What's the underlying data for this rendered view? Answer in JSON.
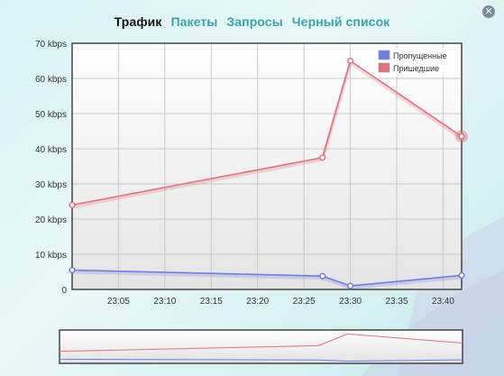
{
  "tabs": [
    {
      "label": "Трафик",
      "active": true
    },
    {
      "label": "Пакеты",
      "active": false
    },
    {
      "label": "Запросы",
      "active": false
    },
    {
      "label": "Черный список",
      "active": false
    }
  ],
  "close_icon": "close-icon",
  "colors": {
    "series_dropped": "#6e7ee6",
    "series_incoming": "#e4707c",
    "active_tab": "#111111",
    "inactive_tab": "#3aa3ad"
  },
  "chart_data": {
    "type": "line",
    "y_unit": "kbps",
    "ylim": [
      0,
      70
    ],
    "yticks": [
      0,
      10,
      20,
      30,
      40,
      50,
      60,
      70
    ],
    "ytick_labels": [
      "0",
      "10 kbps",
      "20 kbps",
      "30 kbps",
      "40 kbps",
      "50 kbps",
      "60 kbps",
      "70 kbps"
    ],
    "xlim": [
      "23:00",
      "23:42"
    ],
    "xticks": [
      "23:05",
      "23:10",
      "23:15",
      "23:20",
      "23:25",
      "23:30",
      "23:35",
      "23:40"
    ],
    "grid": true,
    "legend_position": "top-right",
    "series": [
      {
        "name": "Пропущенные",
        "color": "#6e7ee6",
        "x": [
          "23:00",
          "23:27",
          "23:30",
          "23:42"
        ],
        "y": [
          5.5,
          3.8,
          1,
          4
        ]
      },
      {
        "name": "Пришедшие",
        "color": "#e4707c",
        "x": [
          "23:00",
          "23:27",
          "23:30",
          "23:42"
        ],
        "y": [
          24,
          37.5,
          65,
          43.5
        ]
      }
    ],
    "highlighted_point": {
      "series": "Пришедшие",
      "x": "23:42",
      "y": 43.5
    }
  }
}
